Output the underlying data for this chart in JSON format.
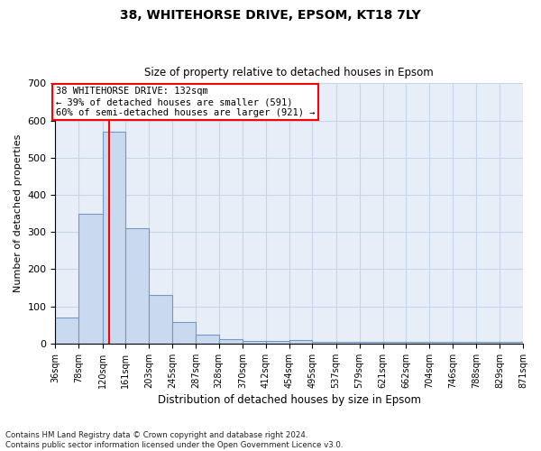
{
  "title1": "38, WHITEHORSE DRIVE, EPSOM, KT18 7LY",
  "title2": "Size of property relative to detached houses in Epsom",
  "xlabel": "Distribution of detached houses by size in Epsom",
  "ylabel": "Number of detached properties",
  "footnote": "Contains HM Land Registry data © Crown copyright and database right 2024.\nContains public sector information licensed under the Open Government Licence v3.0.",
  "bin_labels": [
    "36sqm",
    "78sqm",
    "120sqm",
    "161sqm",
    "203sqm",
    "245sqm",
    "287sqm",
    "328sqm",
    "370sqm",
    "412sqm",
    "454sqm",
    "495sqm",
    "537sqm",
    "579sqm",
    "621sqm",
    "662sqm",
    "704sqm",
    "746sqm",
    "788sqm",
    "829sqm",
    "871sqm"
  ],
  "bin_edges": [
    36,
    78,
    120,
    161,
    203,
    245,
    287,
    328,
    370,
    412,
    454,
    495,
    537,
    579,
    621,
    662,
    704,
    746,
    788,
    829,
    871
  ],
  "bar_heights": [
    70,
    350,
    570,
    310,
    130,
    57,
    25,
    13,
    8,
    8,
    10,
    5,
    5,
    5,
    5,
    5,
    5,
    5,
    5,
    5
  ],
  "bar_color": "#c9d9ef",
  "bar_edge_color": "#7299c6",
  "grid_color": "#c8d4e8",
  "background_color": "#e8eef8",
  "red_line_x": 132,
  "annotation_line1": "38 WHITEHORSE DRIVE: 132sqm",
  "annotation_line2": "← 39% of detached houses are smaller (591)",
  "annotation_line3": "60% of semi-detached houses are larger (921) →",
  "ylim": [
    0,
    700
  ],
  "yticks": [
    0,
    100,
    200,
    300,
    400,
    500,
    600,
    700
  ]
}
